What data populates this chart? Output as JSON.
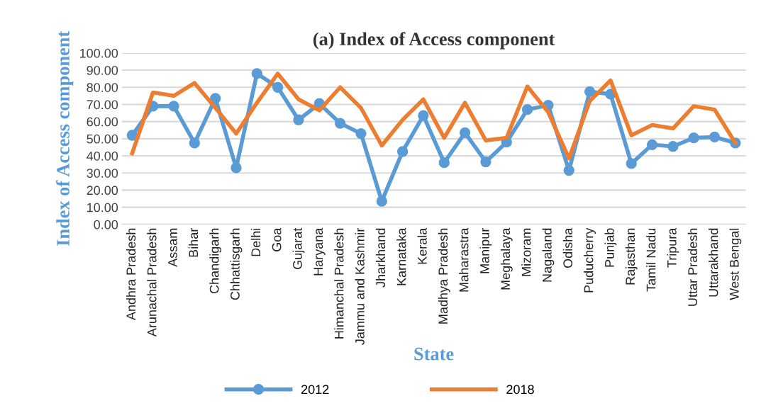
{
  "chart_data": {
    "type": "line",
    "title": "(a) Index of Access component",
    "xlabel": "State",
    "ylabel": "Index of Access component",
    "categories": [
      "Andhra Pradesh",
      "Arunachal Pradesh",
      "Assam",
      "Bihar",
      "Chandigarh",
      "Chhattisgarh",
      "Delhi",
      "Goa",
      "Gujarat",
      "Haryana",
      "Himanchal Pradesh",
      "Jammu and Kashmir",
      "Jharkhand",
      "Karnataka",
      "Kerala",
      "Madhya Pradesh",
      "Maharastra",
      "Manipur",
      "Meghalaya",
      "Mizoram",
      "Nagaland",
      "Odisha",
      "Puducherry",
      "Punjab",
      "Rajasthan",
      "Tamil Nadu",
      "Tripura",
      "Uttar Pradesh",
      "Uttarakhand",
      "West Bengal"
    ],
    "series": [
      {
        "name": "2012",
        "color": "#5b9bd5",
        "marker": "circle",
        "values": [
          52,
          69,
          69,
          47.5,
          73.5,
          33,
          88,
          80,
          61,
          70.5,
          59,
          53,
          13.5,
          42.5,
          63.5,
          36,
          53.5,
          36.5,
          48,
          67,
          69.5,
          31.5,
          77.5,
          76,
          35.5,
          46.5,
          45.5,
          50.5,
          51,
          47.5
        ]
      },
      {
        "name": "2018",
        "color": "#ed7d31",
        "marker": "none",
        "values": [
          41.5,
          77,
          75,
          82.5,
          68,
          53,
          71,
          88,
          73,
          66.5,
          80,
          68,
          46,
          61,
          73,
          50.5,
          71,
          49,
          50.5,
          80.5,
          65.5,
          38.5,
          72,
          84,
          52,
          58,
          56,
          69,
          67,
          47.5
        ]
      }
    ],
    "ylim": [
      0,
      100
    ],
    "yticks": [
      {
        "value": 0,
        "label": "0.00"
      },
      {
        "value": 10,
        "label": "10.00"
      },
      {
        "value": 20,
        "label": "20.00"
      },
      {
        "value": 30,
        "label": "30.00"
      },
      {
        "value": 40,
        "label": "40.00"
      },
      {
        "value": 50,
        "label": "50.00"
      },
      {
        "value": 60,
        "label": "60.00"
      },
      {
        "value": 70,
        "label": "70.00"
      },
      {
        "value": 80,
        "label": "80.00"
      },
      {
        "value": 90,
        "label": "90.00"
      },
      {
        "value": 100,
        "label": "100.00"
      }
    ],
    "grid": "y",
    "legend": "bottom",
    "line_style": "solid"
  }
}
